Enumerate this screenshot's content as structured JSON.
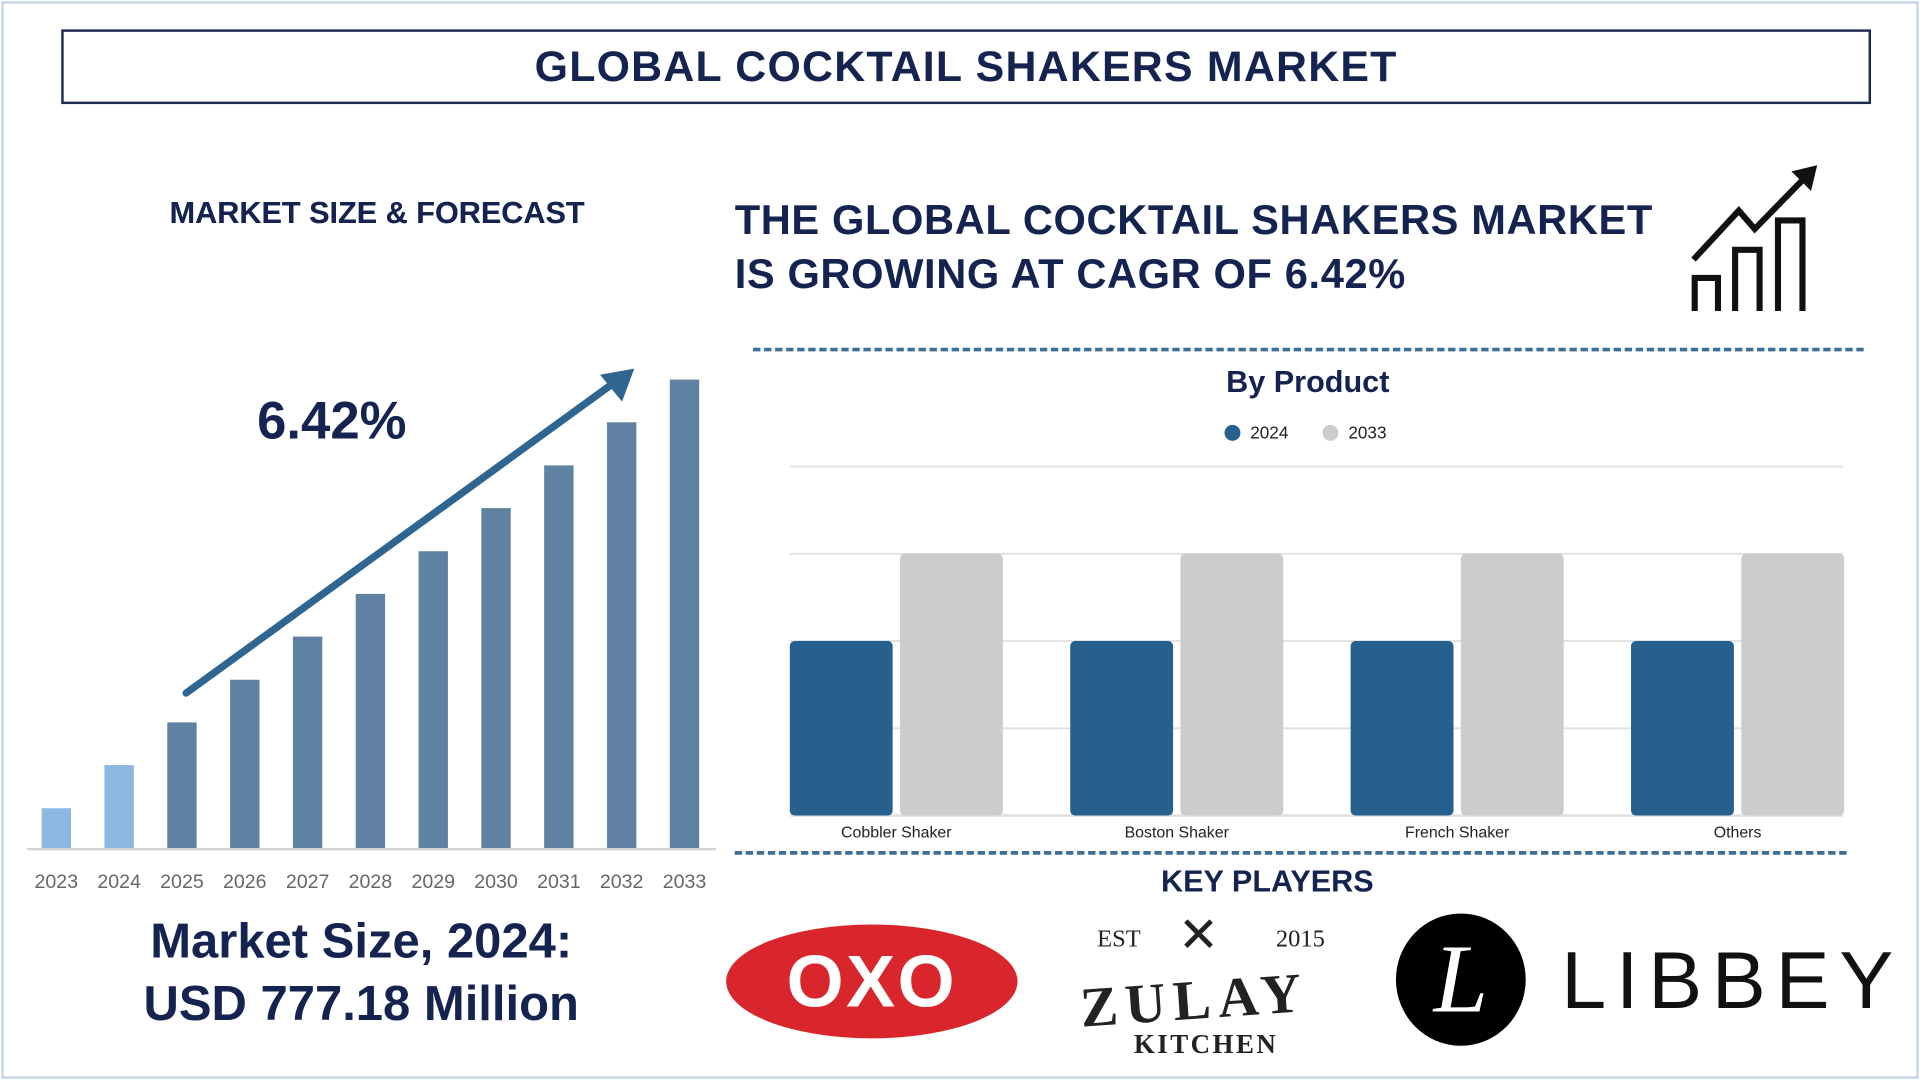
{
  "header": {
    "title": "GLOBAL COCKTAIL SHAKERS MARKET"
  },
  "left": {
    "section_title": "MARKET SIZE & FORECAST",
    "cagr_label": "6.42%",
    "market_size_line1": "Market Size, 2024:",
    "market_size_line2": "USD 777.18 Million"
  },
  "headline": {
    "line1": "THE GLOBAL COCKTAIL SHAKERS MARKET",
    "line2": "IS GROWING AT CAGR OF 6.42%",
    "icon": "growth-chart-icon"
  },
  "key_players": {
    "title": "KEY PLAYERS",
    "logos": [
      {
        "name": "OXO",
        "text": "OXO"
      },
      {
        "name": "Zulay Kitchen",
        "est": "EST",
        "year": "2015",
        "text": "ZULAY",
        "sub": "KITCHEN"
      },
      {
        "name": "Libbey",
        "mark": "L",
        "text": "LIBBEY"
      }
    ]
  },
  "colors": {
    "navy": "#14234f",
    "bar_forecast": "#5f82a3",
    "bar_actual": "#8ab8e0",
    "series_2024": "#26608e",
    "series_2033": "#cccccc",
    "dash": "#3d6e95",
    "oxo_red": "#d9262c"
  },
  "chart_data": [
    {
      "type": "bar",
      "title": "MARKET SIZE & FORECAST",
      "categories": [
        "2023",
        "2024",
        "2025",
        "2026",
        "2027",
        "2028",
        "2029",
        "2030",
        "2031",
        "2032",
        "2033"
      ],
      "values": [
        8.6,
        17.8,
        26.9,
        36.0,
        45.2,
        54.3,
        63.4,
        72.6,
        81.7,
        90.9,
        100
      ],
      "value_scale": "relative (2033 = 100), no axis printed",
      "annotation": "6.42%",
      "grid": false
    },
    {
      "type": "bar",
      "title": "By Product",
      "categories": [
        "Cobbler Shaker",
        "Boston Shaker",
        "French Shaker",
        "Others"
      ],
      "series": [
        {
          "name": "2024",
          "values": [
            2,
            2,
            2,
            2
          ]
        },
        {
          "name": "2033",
          "values": [
            3,
            3,
            3,
            3
          ]
        }
      ],
      "ylim": [
        0,
        4
      ],
      "grid": true,
      "legend": "top"
    }
  ]
}
